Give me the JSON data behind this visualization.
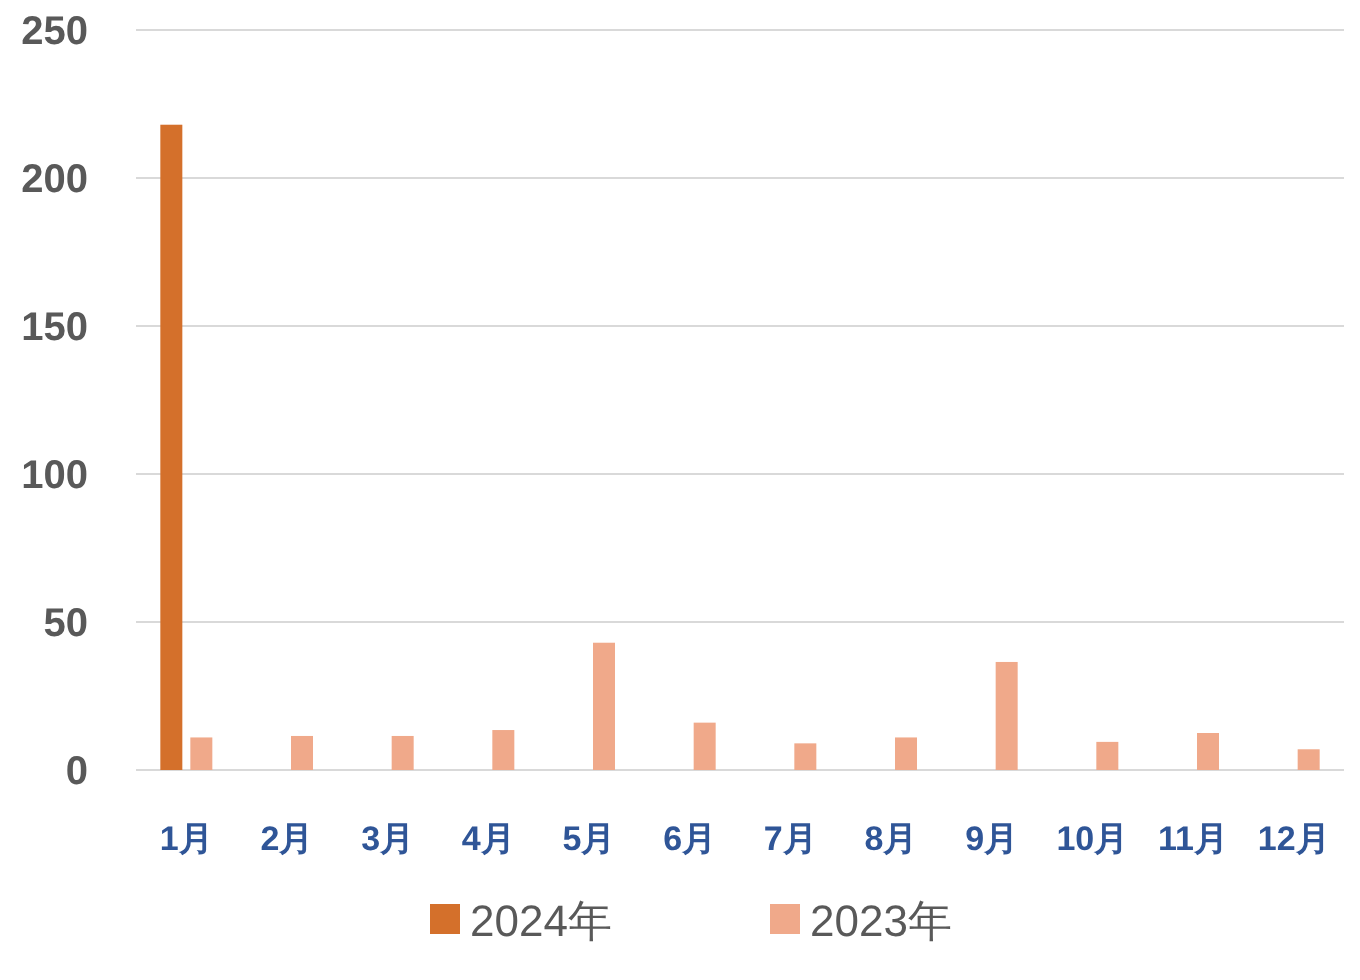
{
  "chart_data": {
    "type": "bar",
    "categories": [
      "1月",
      "2月",
      "3月",
      "4月",
      "5月",
      "6月",
      "7月",
      "8月",
      "9月",
      "10月",
      "11月",
      "12月"
    ],
    "series": [
      {
        "name": "2024年",
        "color": "#d4702b",
        "values": [
          218,
          null,
          null,
          null,
          null,
          null,
          null,
          null,
          null,
          null,
          null,
          null
        ]
      },
      {
        "name": "2023年",
        "color": "#f0a98a",
        "values": [
          11,
          11.5,
          11.5,
          13.5,
          43,
          16,
          9,
          11,
          36.5,
          9.5,
          12.5,
          7
        ]
      }
    ],
    "ylim": [
      0,
      250
    ],
    "yticks": [
      0,
      50,
      100,
      150,
      200,
      250
    ],
    "grid": "y",
    "legend": "bottom"
  }
}
